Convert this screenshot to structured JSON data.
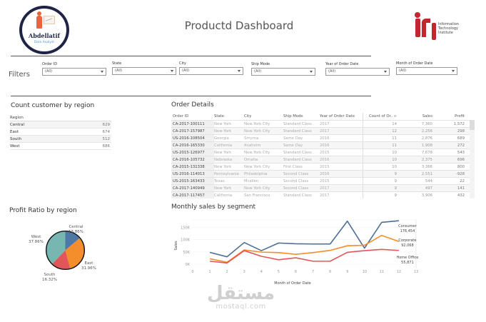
{
  "header": {
    "title": "Productd Dashboard",
    "left_logo": {
      "name": "Abdellatif",
      "subtitle": "Data Analyst"
    },
    "right_logo": {
      "mark": "iti",
      "lines": [
        "Information",
        "Technology",
        "Institute"
      ]
    }
  },
  "filters": {
    "label": "Filters",
    "items": [
      {
        "label": "Order ID",
        "value": "(All)"
      },
      {
        "label": "State",
        "value": "(All)"
      },
      {
        "label": "City",
        "value": "(All)"
      },
      {
        "label": "Ship Mode",
        "value": "(All)"
      },
      {
        "label": "Year of Order Date",
        "value": "(All)"
      },
      {
        "label": "Month of Order Date",
        "value": "(All)"
      }
    ]
  },
  "region_count": {
    "title": "Count customer by region",
    "header": "Region",
    "rows": [
      {
        "region": "Central",
        "count": "629"
      },
      {
        "region": "East",
        "count": "674"
      },
      {
        "region": "South",
        "count": "512"
      },
      {
        "region": "West",
        "count": "686"
      }
    ]
  },
  "order_details": {
    "title": "Order Details",
    "columns": [
      "Order ID",
      "State",
      "City",
      "Ship Mode",
      "Year of Order Date",
      "Count of Or..",
      "Sales",
      "Profit"
    ],
    "sort_icon": "sort-descending-icon",
    "rows": [
      [
        "CA-2017-100111",
        "New York",
        "New York City",
        "Standard Class",
        "2017",
        "14",
        "7,360",
        "1,572"
      ],
      [
        "CA-2017-157987",
        "New York",
        "New York City",
        "Standard Class",
        "2017",
        "12",
        "2,256",
        "298"
      ],
      [
        "US-2016-108504",
        "Georgia",
        "Smyrna",
        "Same Day",
        "2016",
        "11",
        "2,876",
        "689"
      ],
      [
        "CA-2016-165330",
        "California",
        "Anaheim",
        "Same Day",
        "2016",
        "11",
        "1,908",
        "272"
      ],
      [
        "US-2015-126977",
        "New York",
        "New York City",
        "Standard Class",
        "2015",
        "10",
        "7,678",
        "543"
      ],
      [
        "CA-2016-105732",
        "Nebraska",
        "Omaha",
        "Standard Class",
        "2016",
        "10",
        "2,375",
        "696"
      ],
      [
        "CA-2015-131338",
        "New York",
        "New York City",
        "First Class",
        "2015",
        "10",
        "3,386",
        "800"
      ],
      [
        "US-2016-114013",
        "Pennsylvania",
        "Philadelphia",
        "Second Class",
        "2016",
        "9",
        "2,551",
        "-928"
      ],
      [
        "US-2015-163433",
        "Texas",
        "Mcallen",
        "Second Class",
        "2015",
        "9",
        "544",
        "22"
      ],
      [
        "CA-2017-140949",
        "New York",
        "New York City",
        "Second Class",
        "2017",
        "9",
        "497",
        "141"
      ],
      [
        "CA-2017-117457",
        "California",
        "San Francisco",
        "Standard Class",
        "2017",
        "9",
        "3,906",
        "432"
      ]
    ]
  },
  "profit_ratio": {
    "title": "Profit Ratio by region"
  },
  "monthly_sales": {
    "title": "Monthly sales by segment"
  },
  "watermark": {
    "arabic": "مستقل",
    "latin": "mostaql.com"
  },
  "chart_data": [
    {
      "type": "pie",
      "title": "Profit Ratio by region",
      "categories": [
        "Central",
        "East",
        "South",
        "West"
      ],
      "values": [
        13.86,
        31.96,
        16.32,
        37.86
      ],
      "labels": [
        "13.86%",
        "31.96%",
        "16.32%",
        "37.86%"
      ],
      "colors": {
        "Central": "#4e79a7",
        "East": "#f28e2b",
        "South": "#e15759",
        "West": "#76b7b2"
      }
    },
    {
      "type": "line",
      "title": "Monthly sales by segment",
      "xlabel": "Month of Order Date",
      "ylabel": "Sales",
      "x": [
        1,
        2,
        3,
        4,
        5,
        6,
        7,
        8,
        9,
        10,
        11,
        12
      ],
      "x_ticks": [
        0,
        1,
        2,
        3,
        4,
        5,
        6,
        7,
        8,
        9,
        10,
        11,
        12,
        13
      ],
      "y_ticks": [
        "0K",
        "50K",
        "100K",
        "150K"
      ],
      "ylim": [
        0,
        180000
      ],
      "series": [
        {
          "name": "Consumer",
          "color": "#4e6e94",
          "end_label": "176,454",
          "values": [
            48000,
            30000,
            88000,
            55000,
            86000,
            83000,
            82000,
            82000,
            175000,
            65000,
            170000,
            176454
          ]
        },
        {
          "name": "Corporate",
          "color": "#f28e2b",
          "end_label": "92,068",
          "values": [
            22000,
            8000,
            58000,
            49000,
            47000,
            40000,
            47000,
            56000,
            75000,
            77000,
            117000,
            92068
          ]
        },
        {
          "name": "Home Office",
          "color": "#e15759",
          "end_label": "55,871",
          "values": [
            12000,
            5000,
            55000,
            32000,
            18000,
            26000,
            12000,
            12000,
            48000,
            55000,
            60000,
            55871
          ]
        }
      ]
    }
  ]
}
